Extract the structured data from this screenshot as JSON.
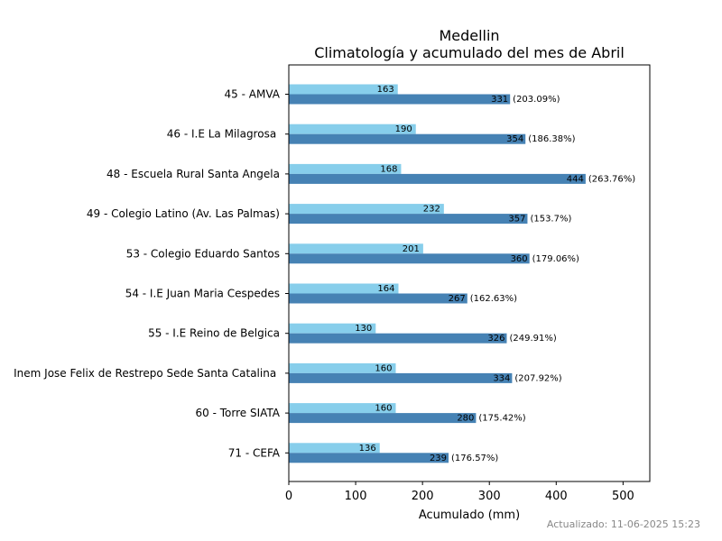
{
  "chart_data": {
    "type": "bar",
    "orientation": "horizontal",
    "title": "Medellin",
    "subtitle": "Climatología y acumulado del mes de Abril",
    "xlabel": "Acumulado (mm)",
    "ylabel": "",
    "xlim": [
      0,
      540
    ],
    "xticks": [
      "0",
      "100",
      "200",
      "300",
      "400",
      "500"
    ],
    "grid": false,
    "categories": [
      "45 - AMVA",
      "46 - I.E La Milagrosa ",
      "48 - Escuela Rural Santa Angela",
      "49 - Colegio Latino (Av. Las Palmas)",
      "53 - Colegio Eduardo Santos",
      "54 - I.E Juan Maria Cespedes",
      "55 - I.E Reino de Belgica",
      "Inem Jose Felix de Restrepo Sede Santa Catalina ",
      "60 - Torre SIATA",
      "71 - CEFA"
    ],
    "series": [
      {
        "role": "climatologia",
        "color": "#87ceeb",
        "values": [
          163,
          190,
          168,
          232,
          201,
          164,
          130,
          160,
          160,
          136
        ],
        "labels": [
          "163",
          "190",
          "168",
          "232",
          "201",
          "164",
          "130",
          "160",
          "160",
          "136"
        ]
      },
      {
        "role": "acumulado",
        "color": "#4682b4",
        "values": [
          331,
          354,
          444,
          357,
          360,
          267,
          326,
          334,
          280,
          239
        ],
        "labels": [
          "331",
          "354",
          "444",
          "357",
          "360",
          "267",
          "326",
          "334",
          "280",
          "239"
        ],
        "pct_labels": [
          "(203.09%)",
          "(186.38%)",
          "(263.76%)",
          "(153.7%)",
          "(179.06%)",
          "(162.63%)",
          "(249.91%)",
          "(207.92%)",
          "(175.42%)",
          "(176.57%)"
        ]
      }
    ]
  },
  "footer": {
    "updated": "Actualizado: 11-06-2025 15:23"
  }
}
